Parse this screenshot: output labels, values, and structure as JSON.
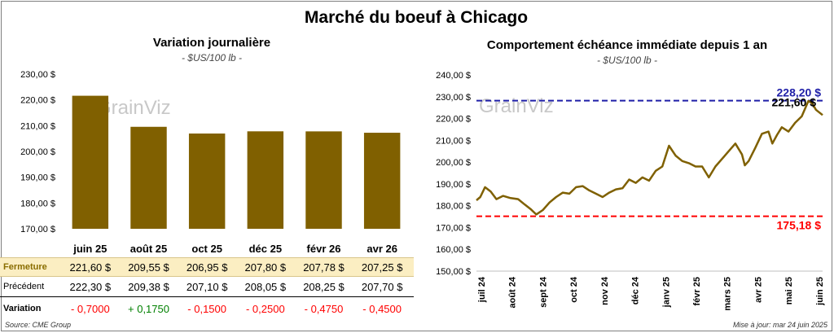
{
  "title": "Marché du boeuf à Chicago",
  "left_chart": {
    "title": "Variation journalière",
    "subtitle": "- $US/100 lb -"
  },
  "right_chart": {
    "title": "Comportement échéance immédiate depuis 1 an",
    "subtitle": "- $US/100 lb -"
  },
  "watermark": "GrainViz",
  "table": {
    "close_label": "Fermeture",
    "prev_label": "Précédent",
    "var_label": "Variation",
    "close": [
      "221,60  $",
      "209,55  $",
      "206,95  $",
      "207,80  $",
      "207,78  $",
      "207,25  $"
    ],
    "prev": [
      "222,30  $",
      "209,38  $",
      "207,10  $",
      "208,05  $",
      "208,25  $",
      "207,70  $"
    ],
    "variation": [
      "- 0,7000",
      "+ 0,1750",
      "- 0,1500",
      "- 0,2500",
      "- 0,4750",
      "- 0,4500"
    ],
    "variation_sign": [
      "neg",
      "pos",
      "neg",
      "neg",
      "neg",
      "neg"
    ]
  },
  "footer": {
    "source": "Source: CME Group",
    "updated": "Mise à jour: mar 24 juin 2025"
  },
  "colors": {
    "bar": "#806000",
    "line": "#7f6000",
    "max_line": "#1f1fa8",
    "min_line": "#ff0000",
    "positive": "#008000",
    "negative": "#ff0000"
  },
  "chart_data": [
    {
      "type": "bar",
      "categories": [
        "juin 25",
        "août 25",
        "oct 25",
        "déc 25",
        "févr 26",
        "avr 26"
      ],
      "values": [
        221.6,
        209.55,
        206.95,
        207.8,
        207.78,
        207.25
      ],
      "ylim": [
        170,
        230
      ],
      "yticks": [
        "170,00 $",
        "180,00 $",
        "190,00 $",
        "200,00 $",
        "210,00 $",
        "220,00 $",
        "230,00 $"
      ],
      "grid": false
    },
    {
      "type": "line",
      "ylim": [
        150,
        240
      ],
      "yticks": [
        "150,00 $",
        "160,00 $",
        "170,00 $",
        "180,00 $",
        "190,00 $",
        "200,00 $",
        "210,00 $",
        "220,00 $",
        "230,00 $",
        "240,00 $"
      ],
      "xticks": [
        "juil 24",
        "août 24",
        "sept 24",
        "oct 24",
        "nov 24",
        "déc 24",
        "janv 25",
        "févr 25",
        "mars 25",
        "avr 25",
        "mai 25",
        "juin 25"
      ],
      "x_range": [
        "2024-06-24",
        "2025-06-24"
      ],
      "series": [
        {
          "points": [
            [
              "2024-06-24",
              182.5
            ],
            [
              "2024-06-28",
              184.0
            ],
            [
              "2024-07-03",
              188.5
            ],
            [
              "2024-07-09",
              186.5
            ],
            [
              "2024-07-15",
              183.0
            ],
            [
              "2024-07-22",
              184.5
            ],
            [
              "2024-07-30",
              183.5
            ],
            [
              "2024-08-07",
              183.0
            ],
            [
              "2024-08-14",
              180.5
            ],
            [
              "2024-08-20",
              178.5
            ],
            [
              "2024-08-26",
              176.0
            ],
            [
              "2024-09-02",
              178.0
            ],
            [
              "2024-09-09",
              181.5
            ],
            [
              "2024-09-16",
              184.0
            ],
            [
              "2024-09-23",
              186.0
            ],
            [
              "2024-09-30",
              185.5
            ],
            [
              "2024-10-07",
              188.5
            ],
            [
              "2024-10-14",
              189.0
            ],
            [
              "2024-10-21",
              187.0
            ],
            [
              "2024-10-28",
              185.5
            ],
            [
              "2024-11-04",
              184.0
            ],
            [
              "2024-11-11",
              186.0
            ],
            [
              "2024-11-18",
              187.5
            ],
            [
              "2024-11-25",
              188.0
            ],
            [
              "2024-12-02",
              192.0
            ],
            [
              "2024-12-09",
              190.5
            ],
            [
              "2024-12-16",
              193.0
            ],
            [
              "2024-12-23",
              191.5
            ],
            [
              "2024-12-30",
              196.0
            ],
            [
              "2025-01-06",
              198.0
            ],
            [
              "2025-01-13",
              207.5
            ],
            [
              "2025-01-20",
              203.0
            ],
            [
              "2025-01-27",
              200.5
            ],
            [
              "2025-02-03",
              199.5
            ],
            [
              "2025-02-10",
              198.0
            ],
            [
              "2025-02-17",
              198.0
            ],
            [
              "2025-02-24",
              193.0
            ],
            [
              "2025-03-03",
              198.0
            ],
            [
              "2025-03-10",
              201.5
            ],
            [
              "2025-03-17",
              205.0
            ],
            [
              "2025-03-24",
              208.5
            ],
            [
              "2025-03-31",
              203.5
            ],
            [
              "2025-04-03",
              198.5
            ],
            [
              "2025-04-07",
              200.5
            ],
            [
              "2025-04-14",
              206.5
            ],
            [
              "2025-04-21",
              213.0
            ],
            [
              "2025-04-28",
              214.0
            ],
            [
              "2025-05-02",
              208.5
            ],
            [
              "2025-05-07",
              212.5
            ],
            [
              "2025-05-12",
              216.0
            ],
            [
              "2025-05-19",
              214.0
            ],
            [
              "2025-05-26",
              218.0
            ],
            [
              "2025-06-02",
              221.0
            ],
            [
              "2025-06-09",
              228.0
            ],
            [
              "2025-06-13",
              227.0
            ],
            [
              "2025-06-17",
              224.0
            ],
            [
              "2025-06-24",
              221.6
            ]
          ]
        }
      ],
      "reference_lines": [
        {
          "value": 228.2,
          "label": "228,20 $",
          "color": "#1f1fa8",
          "style": "dashed"
        },
        {
          "value": 175.18,
          "label": "175,18 $",
          "color": "#ff0000",
          "style": "dashed"
        }
      ],
      "last_label": "221,60 $"
    }
  ]
}
